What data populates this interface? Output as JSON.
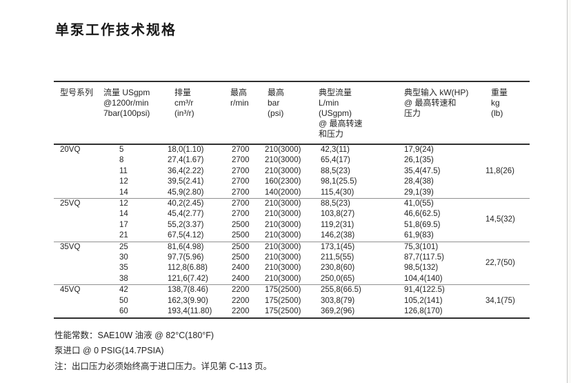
{
  "title": "单泵工作技术规格",
  "table": {
    "headers": [
      {
        "id": "model",
        "lines": [
          "型号系列"
        ]
      },
      {
        "id": "flow",
        "lines": [
          "流量 USgpm",
          "@1200r/min",
          "7bar(100psi)"
        ]
      },
      {
        "id": "displacement",
        "lines": [
          "排量",
          "cm³/r",
          "(in³/r)"
        ]
      },
      {
        "id": "max-speed",
        "lines": [
          "最高",
          "r/min"
        ]
      },
      {
        "id": "max-pressure",
        "lines": [
          "最高",
          "bar",
          "(psi)"
        ]
      },
      {
        "id": "typical-flow",
        "lines": [
          "典型流量",
          "L/min",
          "(USgpm)",
          "@ 最高转速",
          "和压力"
        ]
      },
      {
        "id": "typical-input",
        "lines": [
          "典型输入 kW(HP)",
          "@ 最高转速和",
          "压力"
        ]
      },
      {
        "id": "weight",
        "lines": [
          "重量",
          "kg",
          "(lb)"
        ]
      }
    ],
    "cell_names": [
      "flow-cell",
      "displacement-cell",
      "max-speed-cell",
      "max-pressure-cell",
      "typical-flow-cell",
      "typical-input-cell"
    ],
    "groups": [
      {
        "model": "20VQ",
        "weight": "11,8(26)",
        "rows": [
          [
            "5",
            "18,0(1.10)",
            "2700",
            "210(3000)",
            "42,3(11)",
            "17,9(24)"
          ],
          [
            "8",
            "27,4(1.67)",
            "2700",
            "210(3000)",
            "65,4(17)",
            "26,1(35)"
          ],
          [
            "11",
            "36,4(2.22)",
            "2700",
            "210(3000)",
            "88,5(23)",
            "35,4(47.5)"
          ],
          [
            "12",
            "39,5(2.41)",
            "2700",
            "160(2300)",
            "98,1(25.5)",
            "28,4(38)"
          ],
          [
            "14",
            "45,9(2.80)",
            "2700",
            "140(2000)",
            "115,4(30)",
            "29,1(39)"
          ]
        ]
      },
      {
        "model": "25VQ",
        "weight": "14,5(32)",
        "rows": [
          [
            "12",
            "40,2(2.45)",
            "2700",
            "210(3000)",
            "88,5(23)",
            "41,0(55)"
          ],
          [
            "14",
            "45,4(2.77)",
            "2700",
            "210(3000)",
            "103,8(27)",
            "46,6(62.5)"
          ],
          [
            "17",
            "55,2(3.37)",
            "2500",
            "210(3000)",
            "119,2(31)",
            "51,8(69.5)"
          ],
          [
            "21",
            "67,5(4.12)",
            "2500",
            "210(3000)",
            "146,2(38)",
            "61,9(83)"
          ]
        ]
      },
      {
        "model": "35VQ",
        "weight": "22,7(50)",
        "rows": [
          [
            "25",
            "81,6(4.98)",
            "2500",
            "210(3000)",
            "173,1(45)",
            "75,3(101)"
          ],
          [
            "30",
            "97,7(5.96)",
            "2500",
            "210(3000)",
            "211,5(55)",
            "87,7(117.5)"
          ],
          [
            "35",
            "112,8(6.88)",
            "2400",
            "210(3000)",
            "230,8(60)",
            "98,5(132)"
          ],
          [
            "38",
            "121,6(7.42)",
            "2400",
            "210(3000)",
            "250,0(65)",
            "104,4(140)"
          ]
        ]
      },
      {
        "model": "45VQ",
        "weight": "34,1(75)",
        "rows": [
          [
            "42",
            "138,7(8.46)",
            "2200",
            "175(2500)",
            "255,8(66.5)",
            "91,4(122.5)"
          ],
          [
            "50",
            "162,3(9.90)",
            "2200",
            "175(2500)",
            "303,8(79)",
            "105,2(141)"
          ],
          [
            "60",
            "193,4(11.80)",
            "2200",
            "175(2500)",
            "369,2(96)",
            "126,8(170)"
          ]
        ]
      }
    ]
  },
  "notes": [
    "性能常数：SAE10W 油液 @ 82°C(180°F)",
    "泵进口 @ 0 PSIG(14.7PSIA)",
    "注：出口压力必须始终高于进口压力。详见第 C-113 页。"
  ]
}
